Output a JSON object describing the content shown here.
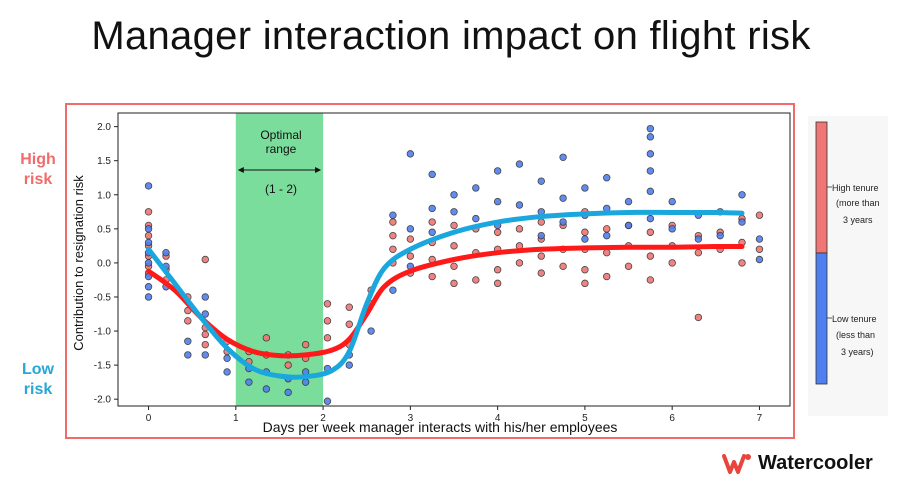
{
  "title": "Manager interaction impact on flight risk",
  "side_labels": {
    "high": "High\nrisk",
    "low": "Low\nrisk"
  },
  "logo": {
    "text": "Watercooler",
    "icon": "watercooler-logo-icon",
    "color": "#e8453c"
  },
  "colors": {
    "high_tenure": "#f07575",
    "low_tenure": "#4f7ff0",
    "high_curve": "#ff1a1a",
    "low_curve": "#1aa7dd",
    "optimal_band": "#4fd17a",
    "frame": "#f26b6b"
  },
  "chart_data": {
    "type": "scatter",
    "xlabel": "Days per week manager interacts with his/her employees",
    "ylabel": "Contribution to resignation risk",
    "xlim": [
      -0.35,
      7.35
    ],
    "ylim": [
      -2.1,
      2.2
    ],
    "xticks": [
      0,
      1,
      2,
      3,
      4,
      5,
      6,
      7
    ],
    "yticks": [
      -2.0,
      -1.5,
      -1.0,
      -0.5,
      0.0,
      0.5,
      1.0,
      1.5,
      2.0
    ],
    "annotation": {
      "text_line1": "Optimal",
      "text_line2": "range",
      "range_label": "(1 - 2)",
      "x_range": [
        1,
        2
      ]
    },
    "colorbar": {
      "high_label": [
        "High tenure",
        "(more than",
        "3 years"
      ],
      "low_label": [
        "Low tenure",
        "(less than",
        "3 years)"
      ]
    },
    "series": [
      {
        "name": "High tenure",
        "color": "#f07575",
        "curve": [
          [
            0,
            -0.12
          ],
          [
            0.3,
            -0.4
          ],
          [
            0.6,
            -0.8
          ],
          [
            0.9,
            -1.12
          ],
          [
            1.2,
            -1.3
          ],
          [
            1.5,
            -1.36
          ],
          [
            1.8,
            -1.35
          ],
          [
            2.1,
            -1.28
          ],
          [
            2.3,
            -1.12
          ],
          [
            2.5,
            -0.75
          ],
          [
            2.7,
            -0.35
          ],
          [
            3.0,
            -0.12
          ],
          [
            3.5,
            0.05
          ],
          [
            4.0,
            0.15
          ],
          [
            4.5,
            0.2
          ],
          [
            5.0,
            0.22
          ],
          [
            5.5,
            0.23
          ],
          [
            6.0,
            0.23
          ],
          [
            6.5,
            0.24
          ],
          [
            6.8,
            0.24
          ]
        ],
        "points": [
          [
            0,
            0.75
          ],
          [
            0,
            0.55
          ],
          [
            0,
            0.4
          ],
          [
            0,
            0.25
          ],
          [
            0,
            0.1
          ],
          [
            0,
            -0.05
          ],
          [
            0,
            -0.15
          ],
          [
            0.2,
            0.1
          ],
          [
            0.2,
            -0.1
          ],
          [
            0.2,
            -0.25
          ],
          [
            0.45,
            -0.5
          ],
          [
            0.45,
            -0.7
          ],
          [
            0.45,
            -0.85
          ],
          [
            0.65,
            0.05
          ],
          [
            0.65,
            -0.95
          ],
          [
            0.65,
            -1.05
          ],
          [
            0.65,
            -1.2
          ],
          [
            0.9,
            -1.15
          ],
          [
            0.9,
            -1.3
          ],
          [
            1.15,
            -1.3
          ],
          [
            1.15,
            -1.45
          ],
          [
            1.35,
            -1.35
          ],
          [
            1.35,
            -1.1
          ],
          [
            1.6,
            -1.35
          ],
          [
            1.6,
            -1.5
          ],
          [
            1.8,
            -1.2
          ],
          [
            1.8,
            -1.4
          ],
          [
            2.05,
            -0.6
          ],
          [
            2.05,
            -0.85
          ],
          [
            2.05,
            -1.1
          ],
          [
            2.3,
            -0.65
          ],
          [
            2.3,
            -0.9
          ],
          [
            2.3,
            -1.2
          ],
          [
            2.55,
            -0.4
          ],
          [
            2.55,
            -0.6
          ],
          [
            2.8,
            0.6
          ],
          [
            2.8,
            0.4
          ],
          [
            2.8,
            0.2
          ],
          [
            2.8,
            0.0
          ],
          [
            3.0,
            0.35
          ],
          [
            3.0,
            0.1
          ],
          [
            3.0,
            -0.15
          ],
          [
            3.25,
            0.6
          ],
          [
            3.25,
            0.3
          ],
          [
            3.25,
            0.05
          ],
          [
            3.25,
            -0.2
          ],
          [
            3.5,
            0.55
          ],
          [
            3.5,
            0.25
          ],
          [
            3.5,
            -0.05
          ],
          [
            3.5,
            -0.3
          ],
          [
            3.75,
            0.5
          ],
          [
            3.75,
            0.15
          ],
          [
            3.75,
            -0.25
          ],
          [
            4.0,
            0.45
          ],
          [
            4.0,
            0.2
          ],
          [
            4.0,
            -0.1
          ],
          [
            4.0,
            -0.3
          ],
          [
            4.25,
            0.5
          ],
          [
            4.25,
            0.25
          ],
          [
            4.25,
            0.0
          ],
          [
            4.5,
            0.6
          ],
          [
            4.5,
            0.35
          ],
          [
            4.5,
            0.1
          ],
          [
            4.5,
            -0.15
          ],
          [
            4.75,
            0.55
          ],
          [
            4.75,
            0.2
          ],
          [
            4.75,
            -0.05
          ],
          [
            5.0,
            0.75
          ],
          [
            5.0,
            0.45
          ],
          [
            5.0,
            0.2
          ],
          [
            5.0,
            -0.1
          ],
          [
            5.0,
            -0.3
          ],
          [
            5.25,
            0.5
          ],
          [
            5.25,
            0.15
          ],
          [
            5.25,
            -0.2
          ],
          [
            5.5,
            0.55
          ],
          [
            5.5,
            0.25
          ],
          [
            5.5,
            -0.05
          ],
          [
            5.75,
            0.45
          ],
          [
            5.75,
            0.1
          ],
          [
            5.75,
            -0.25
          ],
          [
            6.0,
            0.55
          ],
          [
            6.0,
            0.25
          ],
          [
            6.0,
            0.0
          ],
          [
            6.3,
            0.4
          ],
          [
            6.3,
            0.15
          ],
          [
            6.3,
            -0.8
          ],
          [
            6.55,
            0.45
          ],
          [
            6.55,
            0.2
          ],
          [
            6.8,
            0.65
          ],
          [
            6.8,
            0.3
          ],
          [
            6.8,
            0.0
          ],
          [
            7.0,
            0.7
          ],
          [
            7.0,
            0.2
          ]
        ]
      },
      {
        "name": "Low tenure",
        "color": "#4f7ff0",
        "curve": [
          [
            0,
            0.2
          ],
          [
            0.3,
            -0.3
          ],
          [
            0.6,
            -0.8
          ],
          [
            0.9,
            -1.25
          ],
          [
            1.2,
            -1.55
          ],
          [
            1.5,
            -1.66
          ],
          [
            1.8,
            -1.67
          ],
          [
            2.1,
            -1.58
          ],
          [
            2.3,
            -1.3
          ],
          [
            2.5,
            -0.6
          ],
          [
            2.7,
            -0.08
          ],
          [
            3.0,
            0.2
          ],
          [
            3.5,
            0.45
          ],
          [
            4.0,
            0.6
          ],
          [
            4.5,
            0.68
          ],
          [
            5.0,
            0.72
          ],
          [
            5.5,
            0.74
          ],
          [
            6.0,
            0.74
          ],
          [
            6.5,
            0.74
          ],
          [
            6.8,
            0.73
          ]
        ],
        "points": [
          [
            0,
            1.13
          ],
          [
            0,
            0.5
          ],
          [
            0,
            0.3
          ],
          [
            0,
            0.15
          ],
          [
            0,
            0.0
          ],
          [
            0,
            -0.2
          ],
          [
            0,
            -0.35
          ],
          [
            0,
            -0.5
          ],
          [
            0.2,
            0.15
          ],
          [
            0.2,
            -0.05
          ],
          [
            0.2,
            -0.35
          ],
          [
            0.45,
            -1.15
          ],
          [
            0.45,
            -1.35
          ],
          [
            0.65,
            -0.5
          ],
          [
            0.65,
            -0.75
          ],
          [
            0.65,
            -1.35
          ],
          [
            0.9,
            -1.4
          ],
          [
            0.9,
            -1.6
          ],
          [
            1.15,
            -1.55
          ],
          [
            1.15,
            -1.75
          ],
          [
            1.35,
            -1.6
          ],
          [
            1.35,
            -1.85
          ],
          [
            1.6,
            -1.7
          ],
          [
            1.6,
            -1.9
          ],
          [
            1.8,
            -1.6
          ],
          [
            1.8,
            -1.75
          ],
          [
            2.05,
            -1.55
          ],
          [
            2.05,
            -2.03
          ],
          [
            2.3,
            -1.35
          ],
          [
            2.3,
            -1.5
          ],
          [
            2.55,
            -1.0
          ],
          [
            2.8,
            0.7
          ],
          [
            2.8,
            -0.4
          ],
          [
            3.0,
            1.6
          ],
          [
            3.0,
            0.5
          ],
          [
            3.0,
            -0.05
          ],
          [
            3.25,
            1.3
          ],
          [
            3.25,
            0.8
          ],
          [
            3.25,
            0.45
          ],
          [
            3.5,
            1.0
          ],
          [
            3.5,
            0.75
          ],
          [
            3.75,
            1.1
          ],
          [
            3.75,
            0.65
          ],
          [
            4.0,
            1.35
          ],
          [
            4.0,
            0.9
          ],
          [
            4.0,
            0.55
          ],
          [
            4.25,
            1.45
          ],
          [
            4.25,
            0.85
          ],
          [
            4.5,
            1.2
          ],
          [
            4.5,
            0.75
          ],
          [
            4.5,
            0.4
          ],
          [
            4.75,
            1.55
          ],
          [
            4.75,
            0.95
          ],
          [
            4.75,
            0.6
          ],
          [
            5.0,
            1.1
          ],
          [
            5.0,
            0.7
          ],
          [
            5.0,
            0.35
          ],
          [
            5.25,
            1.25
          ],
          [
            5.25,
            0.8
          ],
          [
            5.25,
            0.4
          ],
          [
            5.5,
            0.9
          ],
          [
            5.5,
            0.55
          ],
          [
            5.75,
            1.97
          ],
          [
            5.75,
            1.85
          ],
          [
            5.75,
            1.6
          ],
          [
            5.75,
            1.35
          ],
          [
            5.75,
            1.05
          ],
          [
            5.75,
            0.65
          ],
          [
            6.0,
            0.9
          ],
          [
            6.0,
            0.5
          ],
          [
            6.3,
            0.7
          ],
          [
            6.3,
            0.35
          ],
          [
            6.55,
            0.75
          ],
          [
            6.55,
            0.4
          ],
          [
            6.8,
            1.0
          ],
          [
            6.8,
            0.6
          ],
          [
            7.0,
            0.35
          ],
          [
            7.0,
            0.05
          ]
        ]
      }
    ]
  }
}
